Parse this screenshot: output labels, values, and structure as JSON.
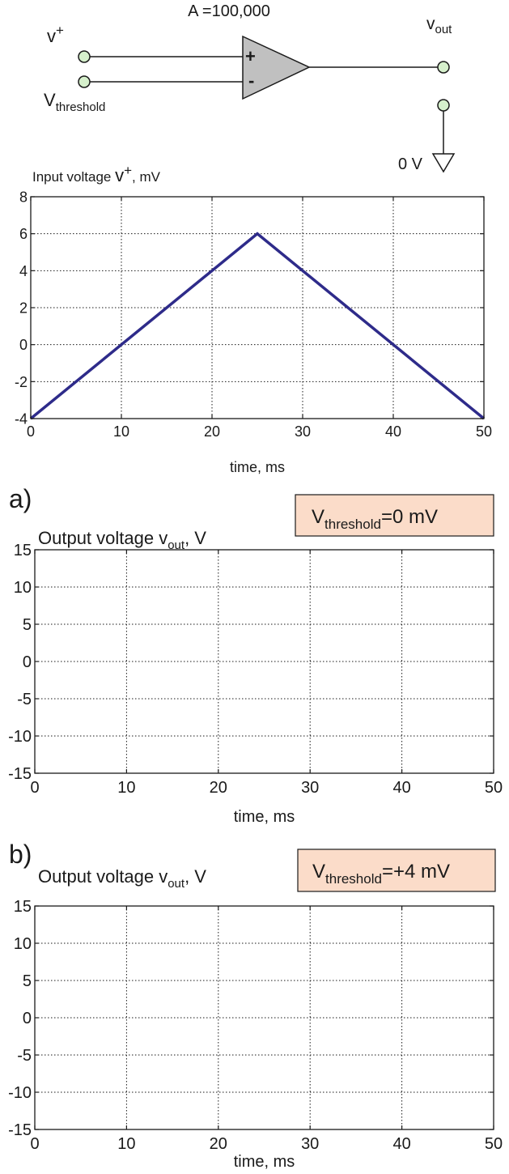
{
  "circuit": {
    "gain_label": "A =100,000",
    "vplus_main": "v",
    "vplus_sup": "+",
    "vthreshold_main": "V",
    "vthreshold_sub": "threshold",
    "vout_main": "v",
    "vout_sub": "out",
    "ground_label": "0 V",
    "plus_sign": "+",
    "minus_sign": "-"
  },
  "colors": {
    "line": "#2e2b8a",
    "node_fill": "#d6f0cc",
    "opamp_fill": "#c0c0c0",
    "box_fill": "#fbdcc9"
  },
  "chart_data": [
    {
      "type": "line",
      "title_main": "Input voltage ",
      "title_var": "v",
      "title_sup": "+",
      "title_unit": ", mV",
      "xlabel": "time, ms",
      "ylabel": "",
      "xlim": [
        0,
        50
      ],
      "ylim": [
        -4,
        8
      ],
      "x_ticks": [
        0,
        10,
        20,
        30,
        40,
        50
      ],
      "y_ticks": [
        -4,
        -2,
        0,
        2,
        4,
        6,
        8
      ],
      "grid": true,
      "series": [
        {
          "x": [
            0,
            25,
            50
          ],
          "y": [
            -4,
            6,
            -4
          ]
        }
      ]
    },
    {
      "type": "line",
      "panel_label": "a)",
      "title_main": "Output voltage ",
      "title_var": "v",
      "title_sub": "out",
      "title_unit": ", V",
      "threshold_box": {
        "main": "V",
        "sub": "threshold",
        "value": "=0 mV"
      },
      "xlabel": "time, ms",
      "ylabel": "",
      "xlim": [
        0,
        50
      ],
      "ylim": [
        -15,
        15
      ],
      "x_ticks": [
        0,
        10,
        20,
        30,
        40,
        50
      ],
      "y_ticks": [
        -15,
        -10,
        -5,
        0,
        5,
        10,
        15
      ],
      "grid": true,
      "series": []
    },
    {
      "type": "line",
      "panel_label": "b)",
      "title_main": "Output voltage ",
      "title_var": "v",
      "title_sub": "out",
      "title_unit": ", V",
      "threshold_box": {
        "main": "V",
        "sub": "threshold",
        "value": "=+4 mV"
      },
      "xlabel": "time, ms",
      "ylabel": "",
      "xlim": [
        0,
        50
      ],
      "ylim": [
        -15,
        15
      ],
      "x_ticks": [
        0,
        10,
        20,
        30,
        40,
        50
      ],
      "y_ticks": [
        -15,
        -10,
        -5,
        0,
        5,
        10,
        15
      ],
      "grid": true,
      "series": []
    }
  ]
}
